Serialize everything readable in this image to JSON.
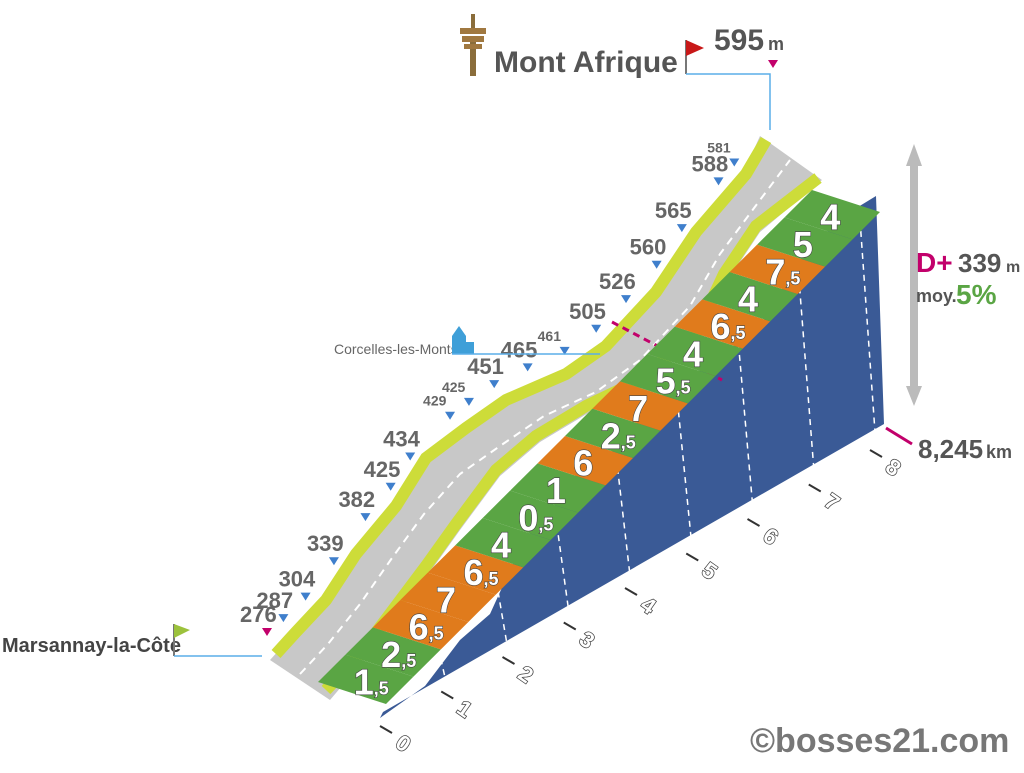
{
  "summit": {
    "name": "Mont Afrique",
    "altitude": "595",
    "unit": "m"
  },
  "start": {
    "name": "Marsannay-la-Côte",
    "altitude": "276"
  },
  "waypoint": {
    "name": "Corcelles-les-Monts"
  },
  "stats": {
    "dplus_label": "D+",
    "dplus_value": "339",
    "dplus_unit": "m",
    "avg_label": "moy.",
    "avg_value": "5%"
  },
  "distance": {
    "value": "8,245",
    "unit": "km"
  },
  "copyright": "©bosses21.com",
  "colors": {
    "road_gray": "#c8c8c8",
    "edge_lime": "#cddc39",
    "wall_blue": "#3a5a96",
    "green": "#5aa544",
    "orange": "#e07b1c",
    "magenta": "#c2006b"
  },
  "chart_data": {
    "type": "area",
    "title": "Mont Afrique",
    "xlabel": "",
    "ylabel": "",
    "x_ticks": [
      "0",
      "1",
      "2",
      "3",
      "4",
      "5",
      "6",
      "7",
      "8"
    ],
    "ylim": [
      276,
      595
    ],
    "segments": [
      {
        "km": "0",
        "gradient": "1,5",
        "value": 1.5,
        "color": "green"
      },
      {
        "km": "1",
        "gradient": "2,5",
        "value": 2.5,
        "color": "green"
      },
      {
        "km": "1,5",
        "gradient": "6,5",
        "value": 6.5,
        "color": "orange"
      },
      {
        "km": "2",
        "gradient": "7",
        "value": 7,
        "color": "orange"
      },
      {
        "km": "2,5",
        "gradient": "6,5",
        "value": 6.5,
        "color": "orange"
      },
      {
        "km": "3",
        "gradient": "4",
        "value": 4,
        "color": "green"
      },
      {
        "km": "3,25",
        "gradient": "0,5",
        "value": 0.5,
        "color": "green"
      },
      {
        "km": "3,5",
        "gradient": "1",
        "value": 1,
        "color": "green"
      },
      {
        "km": "4",
        "gradient": "6",
        "value": 6,
        "color": "orange"
      },
      {
        "km": "4,5",
        "gradient": "2,5",
        "value": 2.5,
        "color": "green"
      },
      {
        "km": "5",
        "gradient": "7",
        "value": 7,
        "color": "orange"
      },
      {
        "km": "5,5",
        "gradient": "5,5",
        "value": 5.5,
        "color": "green"
      },
      {
        "km": "6",
        "gradient": "4",
        "value": 4,
        "color": "green"
      },
      {
        "km": "6,25",
        "gradient": "6,5",
        "value": 6.5,
        "color": "orange"
      },
      {
        "km": "6,75",
        "gradient": "4",
        "value": 4,
        "color": "green"
      },
      {
        "km": "7",
        "gradient": "7,5",
        "value": 7.5,
        "color": "orange"
      },
      {
        "km": "7,5",
        "gradient": "5",
        "value": 5,
        "color": "green"
      },
      {
        "km": "7,75",
        "gradient": "4",
        "value": 4,
        "color": "green"
      }
    ],
    "altitude_labels": [
      {
        "value": "276",
        "km": 0
      },
      {
        "value": "287",
        "km": 0.4
      },
      {
        "value": "304",
        "km": 0.9
      },
      {
        "value": "339",
        "km": 1.5
      },
      {
        "value": "382",
        "km": 2.1
      },
      {
        "value": "425",
        "km": 2.5
      },
      {
        "value": "434",
        "km": 2.9
      },
      {
        "value": "429",
        "km": 3.6
      },
      {
        "value": "425",
        "km": 3.9
      },
      {
        "value": "451",
        "km": 4.3
      },
      {
        "value": "465",
        "km": 4.7
      },
      {
        "value": "461",
        "km": 5.1
      },
      {
        "value": "505",
        "km": 5.6
      },
      {
        "value": "526",
        "km": 6.0
      },
      {
        "value": "560",
        "km": 6.4
      },
      {
        "value": "565",
        "km": 6.8
      },
      {
        "value": "588",
        "km": 7.3
      },
      {
        "value": "581",
        "km": 7.5
      },
      {
        "value": "595",
        "km": 8.245
      }
    ]
  }
}
